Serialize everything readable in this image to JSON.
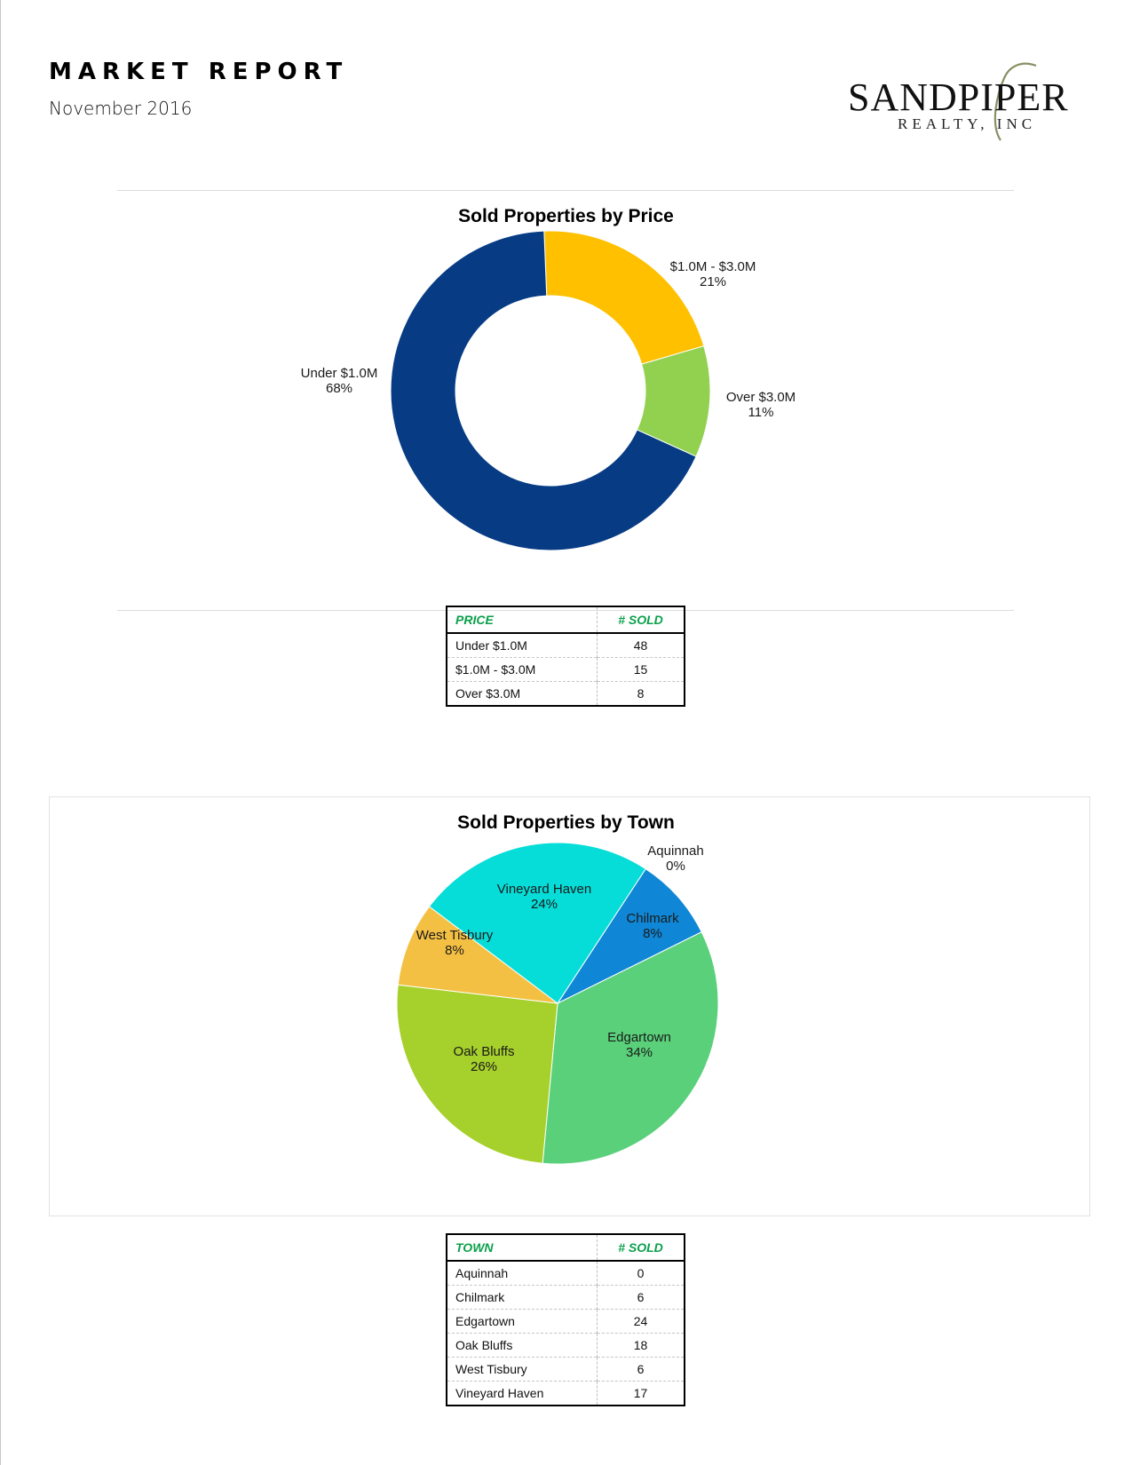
{
  "header": {
    "title": "MARKET REPORT",
    "date": "November 2016",
    "logo_main": "SANDPIPER",
    "logo_sub": "REALTY, INC"
  },
  "price_table": {
    "headers": [
      "PRICE",
      "# SOLD"
    ],
    "rows": [
      {
        "label": "Under $1.0M",
        "value": "48"
      },
      {
        "label": "$1.0M - $3.0M",
        "value": "15"
      },
      {
        "label": "Over $3.0M",
        "value": "8"
      }
    ]
  },
  "town_table": {
    "headers": [
      "TOWN",
      "# SOLD"
    ],
    "rows": [
      {
        "label": "Aquinnah",
        "value": "0"
      },
      {
        "label": "Chilmark",
        "value": "6"
      },
      {
        "label": "Edgartown",
        "value": "24"
      },
      {
        "label": "Oak Bluffs",
        "value": "18"
      },
      {
        "label": "West Tisbury",
        "value": "6"
      },
      {
        "label": "Vineyard Haven",
        "value": "17"
      }
    ]
  },
  "chart_data": [
    {
      "type": "pie",
      "donut": true,
      "title": "Sold Properties by Price",
      "slices": [
        {
          "label": "$1.0M - $3.0M",
          "value": 15,
          "percent": "21%",
          "color": "#ffc000"
        },
        {
          "label": "Over $3.0M",
          "value": 8,
          "percent": "11%",
          "color": "#92d050"
        },
        {
          "label": "Under $1.0M",
          "value": 48,
          "percent": "68%",
          "color": "#073c85"
        }
      ]
    },
    {
      "type": "pie",
      "donut": false,
      "title": "Sold Properties by Town",
      "slices": [
        {
          "label": "Aquinnah",
          "value": 0,
          "percent": "0%",
          "color": "#9e9e9e"
        },
        {
          "label": "Chilmark",
          "value": 6,
          "percent": "8%",
          "color": "#0f87d6"
        },
        {
          "label": "Edgartown",
          "value": 24,
          "percent": "34%",
          "color": "#5ad07a"
        },
        {
          "label": "Oak Bluffs",
          "value": 18,
          "percent": "26%",
          "color": "#a6d02b"
        },
        {
          "label": "West Tisbury",
          "value": 6,
          "percent": "8%",
          "color": "#f4c043"
        },
        {
          "label": "Vineyard Haven",
          "value": 17,
          "percent": "24%",
          "color": "#06ddd8"
        }
      ]
    }
  ]
}
